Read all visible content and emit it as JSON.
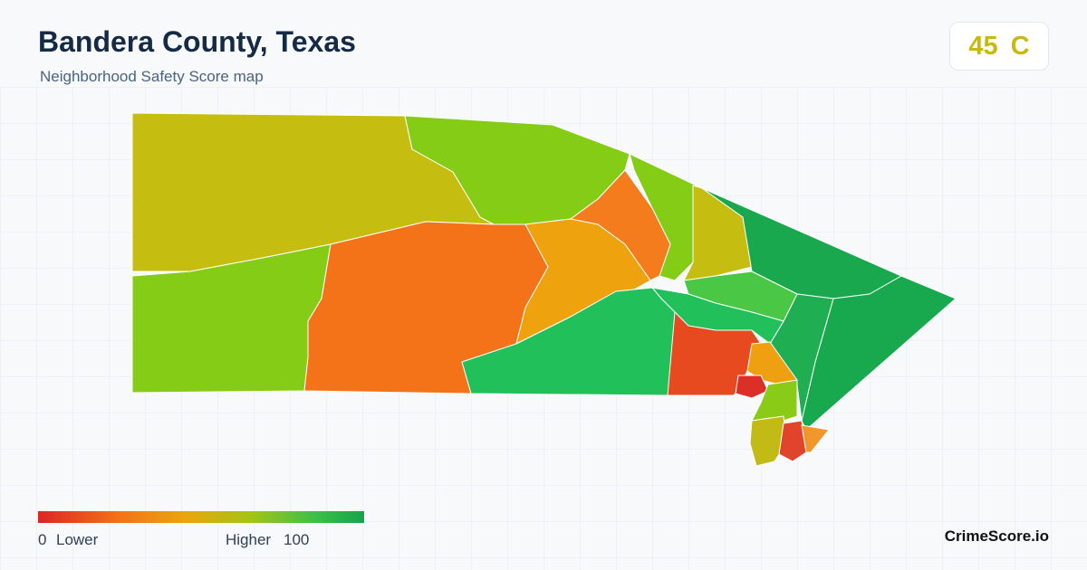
{
  "header": {
    "title": "Bandera County, Texas",
    "subtitle": "Neighborhood Safety Score map"
  },
  "score": {
    "value": 45,
    "grade": "C"
  },
  "legend": {
    "min": 0,
    "min_label": "Lower",
    "max_label": "Higher",
    "max": 100
  },
  "brand": "CrimeScore.io"
}
